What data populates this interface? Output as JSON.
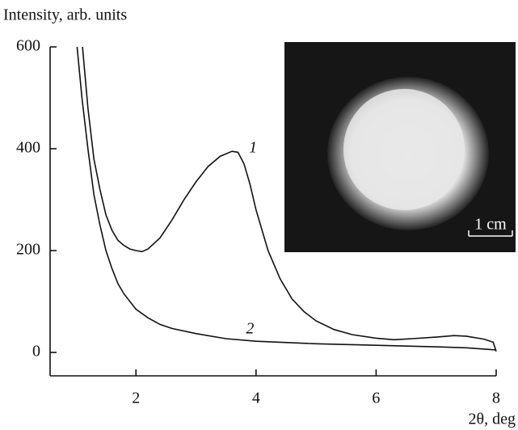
{
  "chart_data": {
    "type": "line",
    "y_label": "Intensity, arb. units",
    "x_label": "2θ, deg",
    "xlim": [
      0.57,
      8
    ],
    "ylim": [
      -46,
      600
    ],
    "xticks": [
      2,
      4,
      6,
      8
    ],
    "yticks": [
      0,
      200,
      400,
      600
    ],
    "inset_annotation": "1 cm",
    "series": [
      {
        "name": "1",
        "color": "#111111",
        "x": [
          1.11,
          1.2,
          1.3,
          1.4,
          1.5,
          1.6,
          1.7,
          1.8,
          1.9,
          2.0,
          2.1,
          2.2,
          2.4,
          2.6,
          2.8,
          3.0,
          3.2,
          3.4,
          3.6,
          3.7,
          3.8,
          3.9,
          4.0,
          4.2,
          4.4,
          4.6,
          4.8,
          5.0,
          5.3,
          5.6,
          6.0,
          6.3,
          6.6,
          7.0,
          7.3,
          7.5,
          7.8,
          7.95,
          8.0
        ],
        "values": [
          600,
          480,
          380,
          320,
          270,
          240,
          220,
          210,
          203,
          200,
          198,
          203,
          225,
          260,
          300,
          335,
          365,
          385,
          395,
          393,
          370,
          330,
          280,
          200,
          145,
          105,
          80,
          62,
          45,
          35,
          28,
          25,
          27,
          30,
          33,
          32,
          26,
          20,
          2
        ]
      },
      {
        "name": "2",
        "color": "#111111",
        "x": [
          1.02,
          1.1,
          1.2,
          1.3,
          1.4,
          1.5,
          1.6,
          1.7,
          1.8,
          2.0,
          2.2,
          2.4,
          2.6,
          3.0,
          3.5,
          4.0,
          5.0,
          6.0,
          7.0,
          7.5,
          8.0
        ],
        "values": [
          600,
          500,
          400,
          310,
          250,
          200,
          165,
          135,
          115,
          85,
          68,
          55,
          47,
          37,
          27,
          22,
          17,
          14,
          11,
          9,
          5
        ]
      }
    ]
  }
}
